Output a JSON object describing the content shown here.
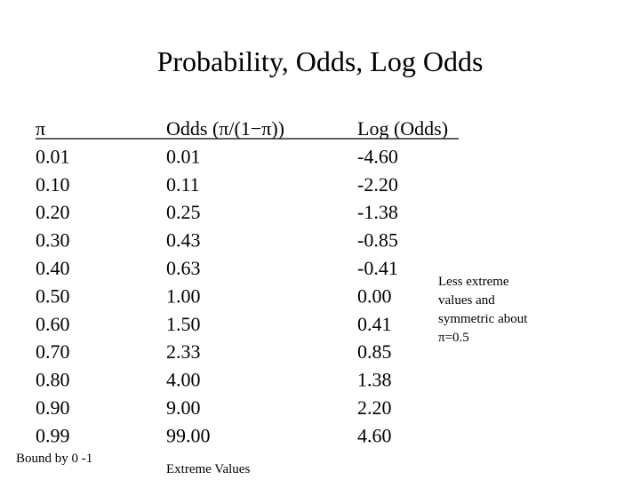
{
  "title": "Probability, Odds, Log Odds",
  "table": {
    "header": [
      "π",
      "Odds (π/(1−π))",
      "Log (Odds)"
    ],
    "rows": [
      [
        "0.01",
        "0.01",
        "-4.60"
      ],
      [
        "0.10",
        "0.11",
        "-2.20"
      ],
      [
        "0.20",
        "0.25",
        "-1.38"
      ],
      [
        "0.30",
        "0.43",
        "-0.85"
      ],
      [
        "0.40",
        "0.63",
        "-0.41"
      ],
      [
        "0.50",
        "1.00",
        "0.00"
      ],
      [
        "0.60",
        "1.50",
        "0.41"
      ],
      [
        "0.70",
        "2.33",
        "0.85"
      ],
      [
        "0.80",
        "4.00",
        "1.38"
      ],
      [
        "0.90",
        "9.00",
        "2.20"
      ],
      [
        "0.99",
        "99.00",
        "4.60"
      ]
    ]
  },
  "notes": {
    "probability": "Bound by 0 -1",
    "odds": "Extreme Values",
    "log_odds": [
      "Less extreme",
      "values and",
      "symmetric about",
      "π=0.5"
    ]
  }
}
